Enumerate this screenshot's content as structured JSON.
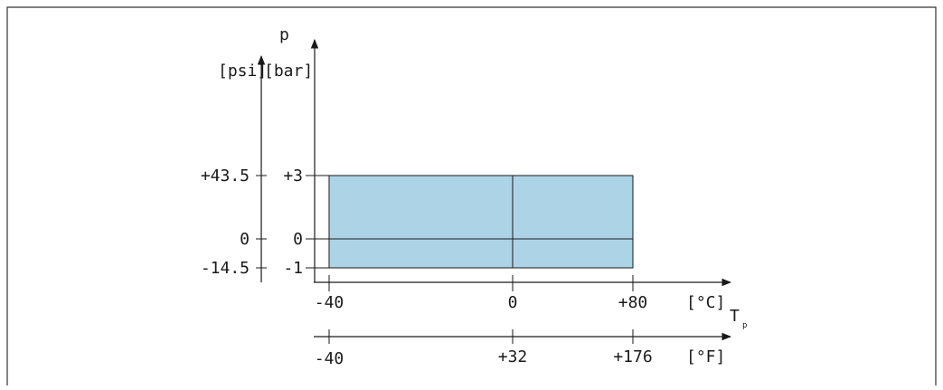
{
  "colors": {
    "fill": "#acd3e6",
    "stroke": "#1a1a1a",
    "frame": "#333333"
  },
  "labels": {
    "p": "p",
    "psi_unit": "[psi]",
    "bar_unit": "[bar]",
    "celsius_unit": "[°C]",
    "fahrenheit_unit": "[°F]",
    "temp_symbol": "T",
    "temp_subscript": "p"
  },
  "chart_data": {
    "type": "area",
    "region": {
      "temp_c": [
        -40,
        80
      ],
      "pressure_bar": [
        -1,
        3
      ]
    },
    "pressure_bar_ticks": [
      "+3",
      "0",
      "-1"
    ],
    "pressure_psi_ticks": [
      "+43.5",
      "0",
      "-14.5"
    ],
    "temp_c_ticks": [
      "-40",
      "0",
      "+80"
    ],
    "temp_f_ticks": [
      "-40",
      "+32",
      "+176"
    ]
  }
}
